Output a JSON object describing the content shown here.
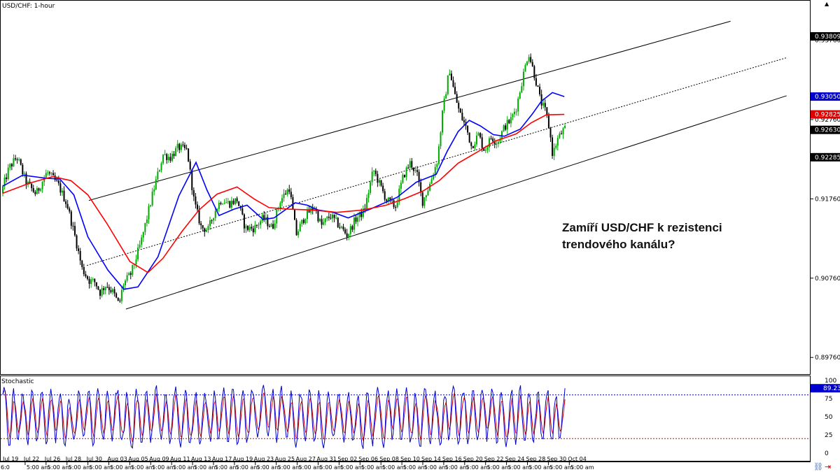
{
  "chart_data": {
    "type": "candlestick",
    "symbol": "USD/CHF",
    "timeframe": "1-hour",
    "title": "USD/CHF: 1-hour",
    "annotation": [
      "Zamíří USD/CHF k rezistenci",
      "trendového kanálu?"
    ],
    "x_axis": {
      "date_ticks": [
        "Jul 19",
        "Jul 22",
        "Jul 26",
        "Jul 28",
        "Jul 30",
        "Aug 03",
        "Aug 05",
        "Aug 09",
        "Aug 11",
        "Aug 13",
        "Aug 17",
        "Aug 19",
        "Aug 23",
        "Aug 25",
        "Aug 27",
        "Aug 31",
        "Sep 02",
        "Sep 06",
        "Sep 08",
        "Sep 10",
        "Sep 14",
        "Sep 16",
        "Sep 20",
        "Sep 22",
        "Sep 24",
        "Sep 28",
        "Sep 30",
        "Oct 04"
      ],
      "time_label": "5:00 am",
      "first_time_label": "6:0"
    },
    "y_axis": {
      "ylim": [
        0.8955,
        0.9425
      ],
      "ticks": [
        "0.93760",
        "0.92760",
        "0.91760",
        "0.90760",
        "0.89760"
      ]
    },
    "price_markers": [
      {
        "label": "0.93809",
        "value": 0.93809,
        "color": "#000000"
      },
      {
        "label": "0.93050",
        "value": 0.9305,
        "color": "#0000cc"
      },
      {
        "label": "0.92825",
        "value": 0.92825,
        "color": "#dd0000"
      },
      {
        "label": "0.92630",
        "value": 0.9263,
        "color": "#000000"
      },
      {
        "label": "0.92285",
        "value": 0.92285,
        "color": "#000000"
      }
    ],
    "price_path": [
      {
        "x": 0,
        "y": 0.9183
      },
      {
        "x": 0.8,
        "y": 0.9215
      },
      {
        "x": 1.6,
        "y": 0.9229
      },
      {
        "x": 2.5,
        "y": 0.9197
      },
      {
        "x": 3.5,
        "y": 0.9182
      },
      {
        "x": 4.6,
        "y": 0.921
      },
      {
        "x": 5.7,
        "y": 0.9194
      },
      {
        "x": 6.6,
        "y": 0.9169
      },
      {
        "x": 7.4,
        "y": 0.9128
      },
      {
        "x": 8.1,
        "y": 0.9088
      },
      {
        "x": 8.8,
        "y": 0.9073
      },
      {
        "x": 9.4,
        "y": 0.9071
      },
      {
        "x": 9.9,
        "y": 0.9058
      },
      {
        "x": 10.5,
        "y": 0.9068
      },
      {
        "x": 11.2,
        "y": 0.9058
      },
      {
        "x": 11.8,
        "y": 0.9042
      },
      {
        "x": 12.2,
        "y": 0.9068
      },
      {
        "x": 13,
        "y": 0.9082
      },
      {
        "x": 14,
        "y": 0.9122
      },
      {
        "x": 15.3,
        "y": 0.919
      },
      {
        "x": 16.2,
        "y": 0.9232
      },
      {
        "x": 16.9,
        "y": 0.9228
      },
      {
        "x": 17.7,
        "y": 0.9241
      },
      {
        "x": 18.6,
        "y": 0.9237
      },
      {
        "x": 19.3,
        "y": 0.9172
      },
      {
        "x": 20,
        "y": 0.914
      },
      {
        "x": 20.7,
        "y": 0.9137
      },
      {
        "x": 21.3,
        "y": 0.9159
      },
      {
        "x": 22,
        "y": 0.9175
      },
      {
        "x": 22.8,
        "y": 0.917
      },
      {
        "x": 23.6,
        "y": 0.9175
      },
      {
        "x": 24.4,
        "y": 0.9139
      },
      {
        "x": 25.3,
        "y": 0.9139
      },
      {
        "x": 26.2,
        "y": 0.9152
      },
      {
        "x": 27.1,
        "y": 0.9139
      },
      {
        "x": 27.9,
        "y": 0.9174
      },
      {
        "x": 28.8,
        "y": 0.919
      },
      {
        "x": 29.5,
        "y": 0.9131
      },
      {
        "x": 30.4,
        "y": 0.9155
      },
      {
        "x": 31.3,
        "y": 0.9166
      },
      {
        "x": 32,
        "y": 0.9142
      },
      {
        "x": 32.9,
        "y": 0.9155
      },
      {
        "x": 33.8,
        "y": 0.9142
      },
      {
        "x": 34.6,
        "y": 0.913
      },
      {
        "x": 35.4,
        "y": 0.915
      },
      {
        "x": 36.3,
        "y": 0.9161
      },
      {
        "x": 37.2,
        "y": 0.9213
      },
      {
        "x": 37.8,
        "y": 0.9195
      },
      {
        "x": 38.5,
        "y": 0.9175
      },
      {
        "x": 39.4,
        "y": 0.9166
      },
      {
        "x": 40.2,
        "y": 0.9205
      },
      {
        "x": 40.9,
        "y": 0.9222
      },
      {
        "x": 41.6,
        "y": 0.9205
      },
      {
        "x": 42.1,
        "y": 0.9172
      },
      {
        "x": 42.8,
        "y": 0.9193
      },
      {
        "x": 43.6,
        "y": 0.9225
      },
      {
        "x": 44.1,
        "y": 0.9283
      },
      {
        "x": 44.8,
        "y": 0.934
      },
      {
        "x": 45.3,
        "y": 0.9309
      },
      {
        "x": 45.8,
        "y": 0.9285
      },
      {
        "x": 46.5,
        "y": 0.9265
      },
      {
        "x": 47,
        "y": 0.9242
      },
      {
        "x": 47.7,
        "y": 0.9257
      },
      {
        "x": 48.3,
        "y": 0.9237
      },
      {
        "x": 49,
        "y": 0.9254
      },
      {
        "x": 49.6,
        "y": 0.9247
      },
      {
        "x": 50.3,
        "y": 0.9267
      },
      {
        "x": 50.9,
        "y": 0.9275
      },
      {
        "x": 51.5,
        "y": 0.9292
      },
      {
        "x": 52.1,
        "y": 0.9328
      },
      {
        "x": 52.7,
        "y": 0.9361
      },
      {
        "x": 53.4,
        "y": 0.9327
      },
      {
        "x": 53.9,
        "y": 0.9299
      },
      {
        "x": 54.4,
        "y": 0.9286
      },
      {
        "x": 54.8,
        "y": 0.9263
      },
      {
        "x": 55.1,
        "y": 0.9232
      },
      {
        "x": 55.6,
        "y": 0.9251
      },
      {
        "x": 56.2,
        "y": 0.9263
      }
    ],
    "series": [
      {
        "name": "",
        "color": "#0000ff",
        "values": [
          {
            "x": 0,
            "y": 0.9192
          },
          {
            "x": 2,
            "y": 0.9206
          },
          {
            "x": 4.3,
            "y": 0.9202
          },
          {
            "x": 5.7,
            "y": 0.9201
          },
          {
            "x": 7.1,
            "y": 0.9181
          },
          {
            "x": 8.5,
            "y": 0.9128
          },
          {
            "x": 10.5,
            "y": 0.9086
          },
          {
            "x": 12.1,
            "y": 0.9062
          },
          {
            "x": 13.5,
            "y": 0.9065
          },
          {
            "x": 15.5,
            "y": 0.9103
          },
          {
            "x": 17.6,
            "y": 0.918
          },
          {
            "x": 19.3,
            "y": 0.9222
          },
          {
            "x": 20.4,
            "y": 0.9187
          },
          {
            "x": 21.6,
            "y": 0.9155
          },
          {
            "x": 23.1,
            "y": 0.9163
          },
          {
            "x": 24.4,
            "y": 0.9168
          },
          {
            "x": 26,
            "y": 0.915
          },
          {
            "x": 27.1,
            "y": 0.9152
          },
          {
            "x": 29.2,
            "y": 0.9171
          },
          {
            "x": 30.4,
            "y": 0.9168
          },
          {
            "x": 31.5,
            "y": 0.9162
          },
          {
            "x": 33,
            "y": 0.9159
          },
          {
            "x": 34.5,
            "y": 0.9152
          },
          {
            "x": 36.7,
            "y": 0.9163
          },
          {
            "x": 39.4,
            "y": 0.9178
          },
          {
            "x": 41.3,
            "y": 0.9197
          },
          {
            "x": 43.3,
            "y": 0.9207
          },
          {
            "x": 44.4,
            "y": 0.9236
          },
          {
            "x": 45.5,
            "y": 0.9261
          },
          {
            "x": 46.6,
            "y": 0.9275
          },
          {
            "x": 47.7,
            "y": 0.9268
          },
          {
            "x": 49,
            "y": 0.9257
          },
          {
            "x": 50.1,
            "y": 0.9255
          },
          {
            "x": 51.7,
            "y": 0.9264
          },
          {
            "x": 52.9,
            "y": 0.9283
          },
          {
            "x": 53.8,
            "y": 0.9299
          },
          {
            "x": 54.9,
            "y": 0.931
          },
          {
            "x": 56.1,
            "y": 0.9305
          }
        ]
      },
      {
        "name": "",
        "color": "#ff0000",
        "values": [
          {
            "x": 0,
            "y": 0.9183
          },
          {
            "x": 2.7,
            "y": 0.9196
          },
          {
            "x": 5,
            "y": 0.9204
          },
          {
            "x": 6.8,
            "y": 0.9199
          },
          {
            "x": 8.5,
            "y": 0.9181
          },
          {
            "x": 10.4,
            "y": 0.9145
          },
          {
            "x": 12.7,
            "y": 0.9097
          },
          {
            "x": 14.5,
            "y": 0.9083
          },
          {
            "x": 16,
            "y": 0.9101
          },
          {
            "x": 17.9,
            "y": 0.9135
          },
          {
            "x": 19.6,
            "y": 0.9162
          },
          {
            "x": 21.4,
            "y": 0.9182
          },
          {
            "x": 23.4,
            "y": 0.9191
          },
          {
            "x": 25.1,
            "y": 0.9176
          },
          {
            "x": 26.6,
            "y": 0.9165
          },
          {
            "x": 28.5,
            "y": 0.9163
          },
          {
            "x": 30.9,
            "y": 0.9162
          },
          {
            "x": 33.4,
            "y": 0.9159
          },
          {
            "x": 36,
            "y": 0.9162
          },
          {
            "x": 38.3,
            "y": 0.9168
          },
          {
            "x": 40.1,
            "y": 0.9176
          },
          {
            "x": 42,
            "y": 0.9186
          },
          {
            "x": 43.6,
            "y": 0.9199
          },
          {
            "x": 45.5,
            "y": 0.9221
          },
          {
            "x": 47.4,
            "y": 0.9235
          },
          {
            "x": 49.2,
            "y": 0.9249
          },
          {
            "x": 51.3,
            "y": 0.9258
          },
          {
            "x": 52.8,
            "y": 0.9272
          },
          {
            "x": 54.3,
            "y": 0.9282
          },
          {
            "x": 56.1,
            "y": 0.92825
          }
        ]
      }
    ],
    "trend_channel": {
      "upper": [
        {
          "x": 8.6,
          "y": 0.9174
        },
        {
          "x": 72.7,
          "y": 0.94
        }
      ],
      "middle": [
        {
          "x": 8.4,
          "y": 0.9092
        },
        {
          "x": 78.3,
          "y": 0.9354
        }
      ],
      "lower": [
        {
          "x": 12.3,
          "y": 0.9037
        },
        {
          "x": 78.3,
          "y": 0.9306
        }
      ]
    },
    "stochastic": {
      "label": "Stochastic",
      "value_label": "89.23",
      "value": 89.23,
      "ticks": [
        "100",
        "75",
        "50",
        "25",
        "0"
      ],
      "levels": [
        80,
        20
      ],
      "main_color": "#0000cc",
      "signal_color": "#dd0000",
      "level_upper_color": "#0000cc",
      "level_lower_color": "#dd0000"
    },
    "grid": false,
    "colors": {
      "bull_candle": "#00aa00",
      "bear_candle": "#000000",
      "channel": "#000000"
    }
  }
}
